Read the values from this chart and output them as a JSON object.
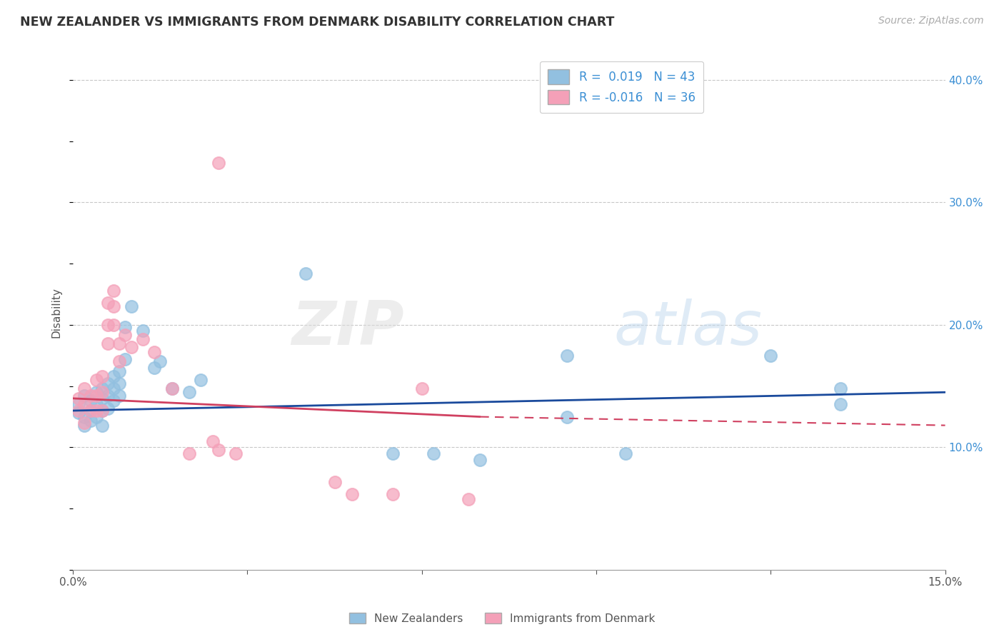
{
  "title": "NEW ZEALANDER VS IMMIGRANTS FROM DENMARK DISABILITY CORRELATION CHART",
  "source": "Source: ZipAtlas.com",
  "ylabel": "Disability",
  "xlabel": "",
  "watermark": "ZIPatlas",
  "xlim": [
    0.0,
    0.15
  ],
  "ylim": [
    0.0,
    0.42
  ],
  "xticks": [
    0.0,
    0.03,
    0.06,
    0.09,
    0.12,
    0.15
  ],
  "xtick_labels": [
    "0.0%",
    "",
    "",
    "",
    "",
    "15.0%"
  ],
  "yticks_right": [
    0.1,
    0.2,
    0.3,
    0.4
  ],
  "ytick_right_labels": [
    "10.0%",
    "20.0%",
    "30.0%",
    "40.0%"
  ],
  "blue_color": "#92C0E0",
  "pink_color": "#F4A0B8",
  "blue_line_color": "#1A4A9C",
  "pink_line_color": "#D04060",
  "grid_color": "#C8C8C8",
  "background_color": "#FFFFFF",
  "nz_points": [
    [
      0.001,
      0.135
    ],
    [
      0.001,
      0.128
    ],
    [
      0.002,
      0.142
    ],
    [
      0.002,
      0.125
    ],
    [
      0.002,
      0.118
    ],
    [
      0.003,
      0.138
    ],
    [
      0.003,
      0.13
    ],
    [
      0.003,
      0.122
    ],
    [
      0.004,
      0.145
    ],
    [
      0.004,
      0.135
    ],
    [
      0.004,
      0.125
    ],
    [
      0.005,
      0.148
    ],
    [
      0.005,
      0.14
    ],
    [
      0.005,
      0.13
    ],
    [
      0.005,
      0.118
    ],
    [
      0.006,
      0.152
    ],
    [
      0.006,
      0.142
    ],
    [
      0.006,
      0.132
    ],
    [
      0.007,
      0.158
    ],
    [
      0.007,
      0.148
    ],
    [
      0.007,
      0.138
    ],
    [
      0.008,
      0.162
    ],
    [
      0.008,
      0.152
    ],
    [
      0.008,
      0.142
    ],
    [
      0.009,
      0.198
    ],
    [
      0.009,
      0.172
    ],
    [
      0.01,
      0.215
    ],
    [
      0.012,
      0.195
    ],
    [
      0.014,
      0.165
    ],
    [
      0.015,
      0.17
    ],
    [
      0.017,
      0.148
    ],
    [
      0.02,
      0.145
    ],
    [
      0.022,
      0.155
    ],
    [
      0.04,
      0.242
    ],
    [
      0.055,
      0.095
    ],
    [
      0.062,
      0.095
    ],
    [
      0.07,
      0.09
    ],
    [
      0.085,
      0.175
    ],
    [
      0.085,
      0.125
    ],
    [
      0.095,
      0.095
    ],
    [
      0.12,
      0.175
    ],
    [
      0.132,
      0.148
    ],
    [
      0.132,
      0.135
    ]
  ],
  "dk_points": [
    [
      0.001,
      0.14
    ],
    [
      0.001,
      0.13
    ],
    [
      0.002,
      0.148
    ],
    [
      0.002,
      0.135
    ],
    [
      0.002,
      0.12
    ],
    [
      0.003,
      0.142
    ],
    [
      0.003,
      0.13
    ],
    [
      0.004,
      0.155
    ],
    [
      0.004,
      0.142
    ],
    [
      0.004,
      0.13
    ],
    [
      0.005,
      0.158
    ],
    [
      0.005,
      0.145
    ],
    [
      0.005,
      0.13
    ],
    [
      0.006,
      0.218
    ],
    [
      0.006,
      0.2
    ],
    [
      0.006,
      0.185
    ],
    [
      0.007,
      0.228
    ],
    [
      0.007,
      0.215
    ],
    [
      0.007,
      0.2
    ],
    [
      0.008,
      0.185
    ],
    [
      0.008,
      0.17
    ],
    [
      0.009,
      0.192
    ],
    [
      0.01,
      0.182
    ],
    [
      0.012,
      0.188
    ],
    [
      0.014,
      0.178
    ],
    [
      0.017,
      0.148
    ],
    [
      0.02,
      0.095
    ],
    [
      0.024,
      0.105
    ],
    [
      0.025,
      0.098
    ],
    [
      0.028,
      0.095
    ],
    [
      0.045,
      0.072
    ],
    [
      0.055,
      0.062
    ],
    [
      0.06,
      0.148
    ],
    [
      0.068,
      0.058
    ],
    [
      0.025,
      0.332
    ],
    [
      0.048,
      0.062
    ]
  ],
  "nz_trend": [
    0.0,
    0.15,
    0.13,
    0.145
  ],
  "dk_trend_solid": [
    0.0,
    0.07,
    0.14,
    0.125
  ],
  "dk_trend_dashed": [
    0.07,
    0.15,
    0.125,
    0.118
  ]
}
